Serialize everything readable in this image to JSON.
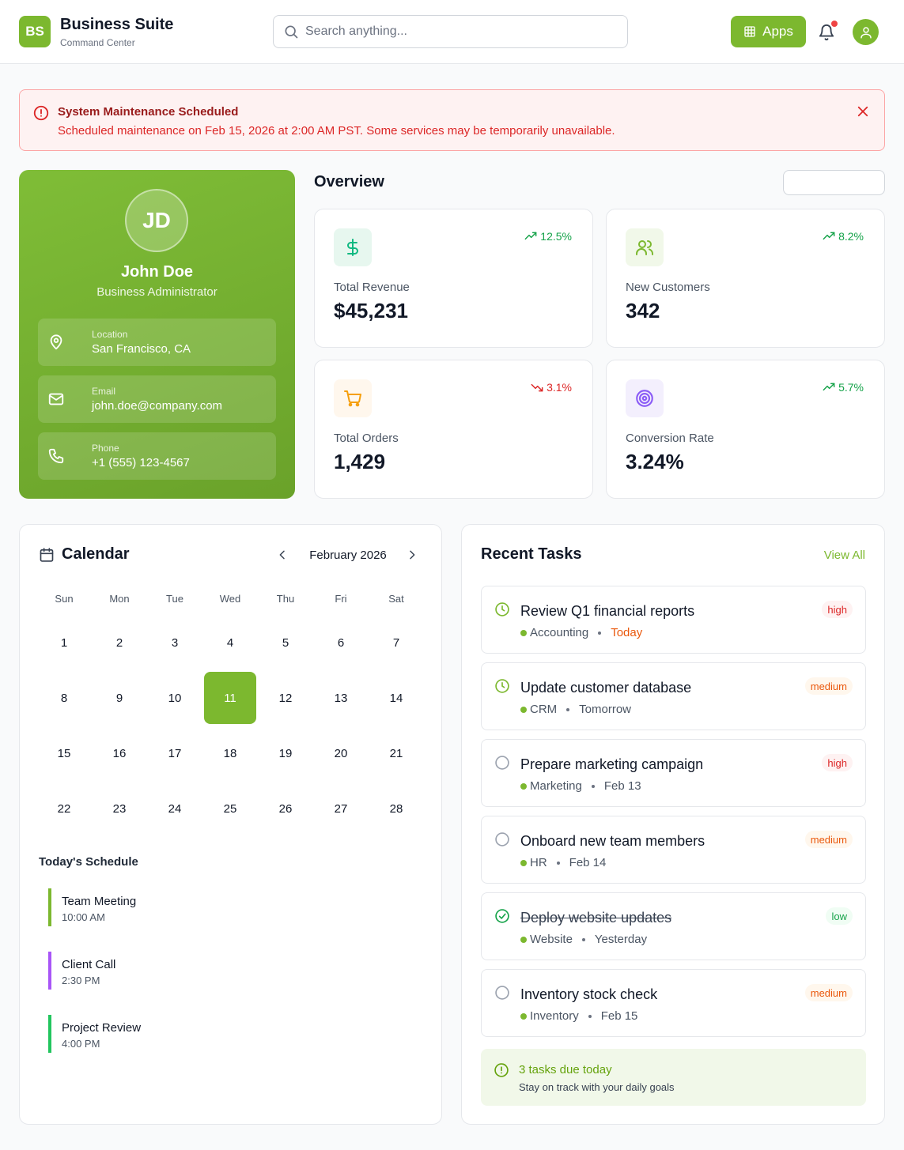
{
  "header": {
    "logo": "BS",
    "title": "Business Suite",
    "subtitle": "Command Center",
    "search_placeholder": "Search anything...",
    "apps_label": "Apps",
    "notification_dot": true
  },
  "alert": {
    "title": "System Maintenance Scheduled",
    "message": "Scheduled maintenance on Feb 15, 2026 at 2:00 AM PST. Some services may be temporarily unavailable."
  },
  "profile": {
    "initials": "JD",
    "name": "John Doe",
    "role": "Business Administrator",
    "info": [
      {
        "icon": "map-pin-icon",
        "label": "Location",
        "value": "San Francisco, CA"
      },
      {
        "icon": "mail-icon",
        "label": "Email",
        "value": "john.doe@company.com"
      },
      {
        "icon": "phone-icon",
        "label": "Phone",
        "value": "+1 (555) 123-4567"
      }
    ]
  },
  "overview": {
    "title": "Overview",
    "stats": [
      {
        "icon": "dollar-icon",
        "label": "Total Revenue",
        "value": "$45,231",
        "change": "12.5%",
        "trend": "up"
      },
      {
        "icon": "users-icon",
        "label": "New Customers",
        "value": "342",
        "change": "8.2%",
        "trend": "up"
      },
      {
        "icon": "cart-icon",
        "label": "Total Orders",
        "value": "1,429",
        "change": "3.1%",
        "trend": "down"
      },
      {
        "icon": "target-icon",
        "label": "Conversion Rate",
        "value": "3.24%",
        "change": "5.7%",
        "trend": "up"
      }
    ]
  },
  "calendar": {
    "title": "Calendar",
    "month": "February 2026",
    "weekdays": [
      "Sun",
      "Mon",
      "Tue",
      "Wed",
      "Thu",
      "Fri",
      "Sat"
    ],
    "days": [
      "1",
      "2",
      "3",
      "4",
      "5",
      "6",
      "7",
      "8",
      "9",
      "10",
      "11",
      "12",
      "13",
      "14",
      "15",
      "16",
      "17",
      "18",
      "19",
      "20",
      "21",
      "22",
      "23",
      "24",
      "25",
      "26",
      "27",
      "28"
    ],
    "selected_day": "11",
    "schedule_title": "Today's Schedule",
    "events": [
      {
        "name": "Team Meeting",
        "time": "10:00 AM",
        "color": "#7cb82f"
      },
      {
        "name": "Client Call",
        "time": "2:30 PM",
        "color": "#a855f7"
      },
      {
        "name": "Project Review",
        "time": "4:00 PM",
        "color": "#22c55e"
      }
    ]
  },
  "tasks": {
    "title": "Recent Tasks",
    "view_all": "View All",
    "items": [
      {
        "name": "Review Q1 financial reports",
        "category": "Accounting",
        "due": "Today",
        "priority": "high",
        "status": "in-progress"
      },
      {
        "name": "Update customer database",
        "category": "CRM",
        "due": "Tomorrow",
        "priority": "medium",
        "status": "in-progress"
      },
      {
        "name": "Prepare marketing campaign",
        "category": "Marketing",
        "due": "Feb 13",
        "priority": "high",
        "status": "pending"
      },
      {
        "name": "Onboard new team members",
        "category": "HR",
        "due": "Feb 14",
        "priority": "medium",
        "status": "pending"
      },
      {
        "name": "Deploy website updates",
        "category": "Website",
        "due": "Yesterday",
        "priority": "low",
        "status": "done"
      },
      {
        "name": "Inventory stock check",
        "category": "Inventory",
        "due": "Feb 15",
        "priority": "medium",
        "status": "pending"
      }
    ],
    "summary_title": "3 tasks due today",
    "summary_sub": "Stay on track with your daily goals"
  },
  "colors": {
    "brand": "#7cb82f",
    "danger": "#dc2626",
    "warning": "#ea580c",
    "success": "#16a34a"
  }
}
